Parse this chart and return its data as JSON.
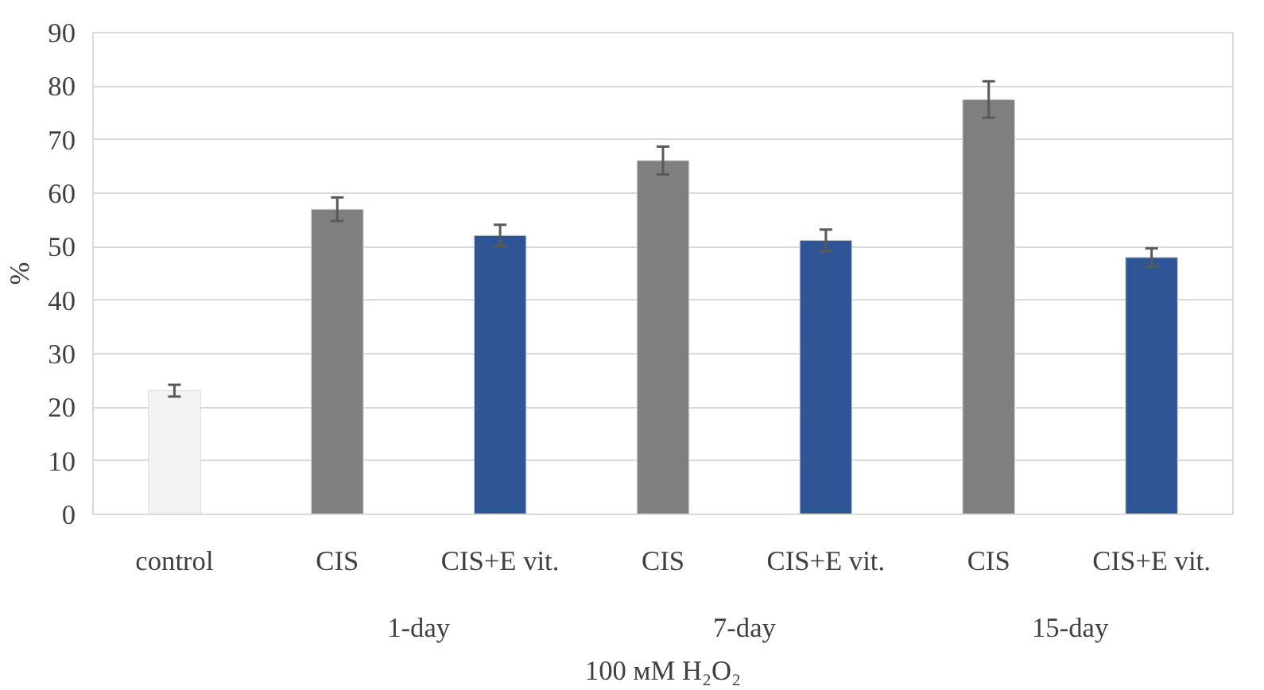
{
  "chart_data": {
    "type": "bar",
    "xlabel": "100 мМ H₂O₂",
    "ylabel": "%",
    "categories": [
      "control",
      "CIS",
      "CIS+E vit.",
      "CIS",
      "CIS+E vit.",
      "CIS",
      "CIS+E vit."
    ],
    "values": [
      23.1,
      57.0,
      52.1,
      66.1,
      51.2,
      77.5,
      48.0
    ],
    "errors": [
      1.1,
      2.2,
      2.0,
      2.6,
      2.0,
      3.4,
      1.7
    ],
    "colors": [
      "#f2f2f2",
      "#7f7f7f",
      "#2f5597",
      "#7f7f7f",
      "#2f5597",
      "#7f7f7f",
      "#2f5597"
    ],
    "annotations": [
      "1-day",
      "7-day",
      "15-day"
    ],
    "ylim": [
      0,
      90
    ],
    "yticks": [
      0,
      10,
      20,
      30,
      40,
      50,
      60,
      70,
      80,
      90
    ],
    "grid": "y"
  }
}
